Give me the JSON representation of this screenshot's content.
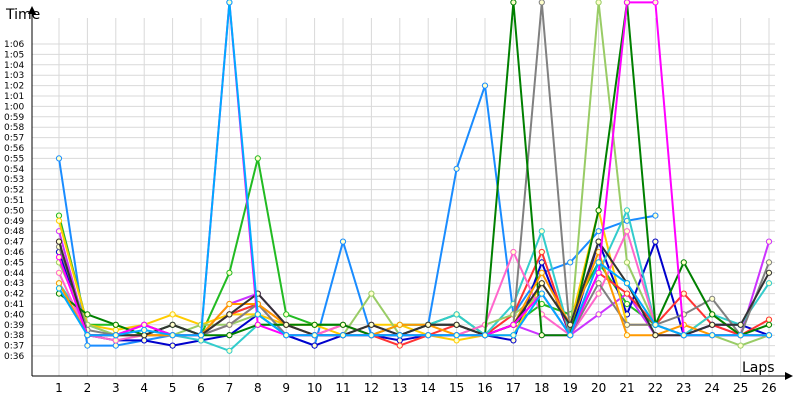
{
  "chart_data": {
    "type": "line",
    "ylabel": "Time",
    "xlabel": "Laps",
    "x": [
      1,
      2,
      3,
      4,
      5,
      6,
      7,
      8,
      9,
      10,
      11,
      12,
      13,
      14,
      15,
      16,
      17,
      18,
      19,
      20,
      21,
      22,
      23,
      24,
      25,
      26
    ],
    "y_tick_labels": [
      "0:36",
      "0:37",
      "0:38",
      "0:39",
      "0:40",
      "0:41",
      "0:42",
      "0:43",
      "0:44",
      "0:45",
      "0:46",
      "0:47",
      "0:48",
      "0:49",
      "0:50",
      "0:51",
      "0:52",
      "0:53",
      "0:54",
      "0:55",
      "0:56",
      "0:57",
      "0:58",
      "0:59",
      "1:00",
      "1:01",
      "1:02",
      "1:03",
      "1:04",
      "1:05",
      "1:06"
    ],
    "ylim_seconds": [
      35,
      68
    ],
    "grid": true,
    "series": [
      {
        "color": "#1a8cff",
        "values": [
          55,
          37,
          37,
          37.5,
          38,
          38,
          40,
          41,
          38,
          37,
          47,
          38,
          38,
          39,
          54,
          62,
          40,
          44,
          45,
          48,
          49,
          49.5,
          null,
          null,
          null,
          null
        ]
      },
      {
        "color": "#22bb22",
        "values": [
          49.5,
          39,
          39,
          38,
          39,
          38,
          44,
          55,
          40,
          39,
          39,
          38,
          39,
          39,
          40,
          38,
          39,
          41,
          40,
          45,
          41,
          39,
          38,
          38,
          38,
          38
        ]
      },
      {
        "color": "#cc33ff",
        "values": [
          48,
          38,
          38,
          39,
          38,
          38,
          41,
          42,
          39,
          38,
          38,
          39,
          38,
          39,
          39,
          38,
          39,
          38,
          38,
          40,
          42,
          38,
          38,
          39,
          38,
          47
        ]
      },
      {
        "color": "#0000cc",
        "values": [
          46,
          38,
          37.5,
          37.5,
          37,
          37.5,
          38,
          40,
          38,
          37,
          38,
          38,
          37.5,
          38,
          38,
          38,
          37.5,
          45,
          38,
          47,
          40,
          47,
          38,
          39,
          39,
          38
        ]
      },
      {
        "color": "#ffcc00",
        "values": [
          49,
          39,
          38.5,
          39,
          40,
          39,
          40,
          40,
          39,
          39,
          38,
          39,
          39,
          38,
          37.5,
          38,
          38,
          43,
          39,
          50,
          39,
          39,
          38,
          40,
          38,
          38
        ]
      },
      {
        "color": "#ff3333",
        "values": [
          47,
          38,
          38,
          39,
          38,
          38,
          40,
          41,
          39,
          38,
          39,
          38,
          37,
          38,
          39,
          38,
          40,
          46,
          38,
          44,
          42,
          39,
          42,
          39,
          38,
          39.5
        ]
      },
      {
        "color": "#33cccc",
        "values": [
          43,
          39,
          38,
          39,
          38,
          37.5,
          36.5,
          39,
          39,
          38,
          38,
          38,
          39,
          39,
          40,
          38,
          41,
          48,
          38,
          44,
          50,
          39,
          38,
          40,
          39,
          43
        ]
      },
      {
        "color": "#99cc66",
        "values": [
          45,
          39,
          38,
          38,
          38,
          39,
          39,
          40,
          38,
          38,
          38,
          42,
          38,
          38,
          38,
          39,
          40,
          42,
          38,
          70,
          45,
          39,
          38,
          38,
          37,
          38
        ]
      },
      {
        "color": "#ff66cc",
        "values": [
          44,
          38,
          37.5,
          38,
          38,
          38,
          39,
          41,
          38,
          38,
          39,
          38,
          38,
          38,
          38,
          39,
          46,
          40,
          38,
          42,
          48,
          39,
          38,
          38,
          38,
          38
        ]
      },
      {
        "color": "#808080",
        "values": [
          46.5,
          38.5,
          38,
          38,
          38,
          38,
          39,
          41,
          38,
          38,
          38,
          39,
          38,
          38,
          38,
          38,
          39,
          70,
          38,
          43,
          39,
          39,
          40,
          41.5,
          38,
          45
        ]
      },
      {
        "color": "#008000",
        "values": [
          42,
          40,
          39,
          38,
          39,
          38,
          38,
          39,
          39,
          39,
          39,
          38,
          38,
          39,
          39,
          38,
          70,
          38,
          38,
          50,
          70,
          39,
          45,
          40,
          38,
          39
        ]
      },
      {
        "color": "#ff9900",
        "values": [
          43,
          38,
          38,
          38,
          38,
          38,
          41,
          41,
          39,
          38,
          38,
          38,
          39,
          39,
          38,
          38,
          39,
          44,
          39,
          46,
          38,
          38,
          39,
          38,
          38,
          38
        ]
      },
      {
        "color": "#333333",
        "values": [
          47,
          38,
          38,
          38,
          39,
          38,
          40,
          42,
          39,
          38,
          38,
          39,
          38,
          39,
          39,
          38,
          39,
          43,
          39,
          47,
          43,
          38,
          38,
          39,
          39,
          44
        ]
      },
      {
        "color": "#ff00ff",
        "values": [
          45.5,
          38,
          38,
          39,
          38,
          38,
          70,
          39,
          38,
          38,
          38,
          38,
          38,
          38,
          38,
          38,
          39,
          42,
          38,
          44,
          70,
          70,
          38,
          38,
          38,
          38
        ]
      },
      {
        "color": "#00aaff",
        "values": [
          42.5,
          38,
          38,
          38.5,
          38,
          38,
          70,
          40,
          38,
          38,
          38,
          38,
          38,
          38,
          38,
          38,
          38,
          42,
          38,
          45,
          43,
          39,
          38,
          38,
          38,
          38
        ]
      }
    ]
  }
}
